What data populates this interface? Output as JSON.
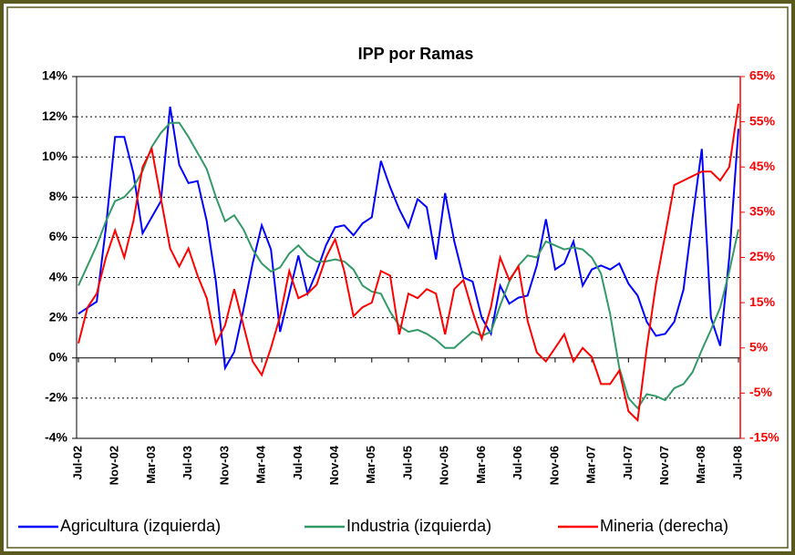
{
  "chart_data": {
    "type": "line",
    "title": "IPP por Ramas",
    "categories": [
      "Jul-02",
      null,
      null,
      null,
      "Nov-02",
      null,
      null,
      null,
      "Mar-03",
      null,
      null,
      null,
      "Jul-03",
      null,
      null,
      null,
      "Nov-03",
      null,
      null,
      null,
      "Mar-04",
      null,
      null,
      null,
      "Jul-04",
      null,
      null,
      null,
      "Nov-04",
      null,
      null,
      null,
      "Mar-05",
      null,
      null,
      null,
      "Jul-05",
      null,
      null,
      null,
      "Nov-05",
      null,
      null,
      null,
      "Mar-06",
      null,
      null,
      null,
      "Jul-06",
      null,
      null,
      null,
      "Nov-06",
      null,
      null,
      null,
      "Mar-07",
      null,
      null,
      null,
      "Jul-07",
      null,
      null,
      null,
      "Nov-07",
      null,
      null,
      null,
      "Mar-08",
      null,
      null,
      null,
      "Jul-08"
    ],
    "series": [
      {
        "name": "Agricultura (izquierda)",
        "color": "#0000ff",
        "axis": "y",
        "values": [
          2.2,
          2.5,
          2.8,
          6.5,
          11.0,
          11.0,
          9.2,
          6.2,
          7.0,
          7.8,
          12.5,
          9.6,
          8.7,
          8.8,
          6.8,
          3.8,
          -0.5,
          0.3,
          2.4,
          4.7,
          6.6,
          5.4,
          1.3,
          3.2,
          5.1,
          3.2,
          4.3,
          5.6,
          6.5,
          6.6,
          6.1,
          6.7,
          7.0,
          9.8,
          8.5,
          7.4,
          6.5,
          7.9,
          7.5,
          4.9,
          8.2,
          5.8,
          4.0,
          3.8,
          2.0,
          1.2,
          3.6,
          2.7,
          3.0,
          3.1,
          4.6,
          6.9,
          4.4,
          4.7,
          5.8,
          3.6,
          4.4,
          4.6,
          4.4,
          4.7,
          3.7,
          3.1,
          1.8,
          1.1,
          1.2,
          1.8,
          3.4,
          7.0,
          10.4,
          2.0,
          0.6,
          5.0,
          11.4
        ]
      },
      {
        "name": "Industria (izquierda)",
        "color": "#339966",
        "axis": "y",
        "values": [
          3.6,
          4.6,
          5.6,
          6.8,
          7.8,
          8.0,
          8.5,
          9.3,
          10.5,
          11.2,
          11.7,
          11.7,
          11.0,
          10.2,
          9.4,
          8.0,
          6.8,
          7.1,
          6.4,
          5.4,
          4.7,
          4.3,
          4.5,
          5.2,
          5.6,
          5.1,
          4.8,
          4.8,
          4.9,
          4.8,
          4.4,
          3.6,
          3.3,
          3.2,
          2.3,
          1.6,
          1.3,
          1.4,
          1.2,
          0.9,
          0.5,
          0.5,
          0.9,
          1.3,
          1.1,
          1.3,
          2.6,
          3.8,
          4.6,
          5.1,
          5.0,
          5.8,
          5.6,
          5.4,
          5.5,
          5.4,
          5.0,
          4.2,
          2.2,
          -0.5,
          -2.0,
          -2.5,
          -1.8,
          -1.9,
          -2.1,
          -1.5,
          -1.3,
          -0.7,
          0.4,
          1.4,
          2.5,
          4.3,
          6.4
        ]
      },
      {
        "name": "Mineria (derecha)",
        "color": "#ff0000",
        "axis": "y2",
        "values": [
          6,
          14,
          17,
          25,
          31,
          25,
          33,
          45,
          49,
          38,
          27,
          23,
          27,
          21,
          16,
          6,
          10,
          18,
          10,
          2,
          -1,
          5,
          12,
          22,
          16,
          17,
          19,
          25,
          29,
          22,
          12,
          14,
          15,
          22,
          21,
          8,
          17,
          16,
          18,
          17,
          8,
          18,
          20,
          13,
          7,
          14,
          25,
          20,
          23,
          11,
          4,
          2,
          5,
          8,
          2,
          5,
          3,
          -3,
          -3,
          0,
          -9,
          -11,
          5,
          19,
          30,
          41,
          42,
          43,
          44,
          44,
          42,
          45,
          59
        ]
      }
    ],
    "ylim": [
      -4,
      14
    ],
    "yticks": [
      {
        "value": -4,
        "label": "-4%"
      },
      {
        "value": -2,
        "label": "-2%"
      },
      {
        "value": 0,
        "label": "0%"
      },
      {
        "value": 2,
        "label": "2%"
      },
      {
        "value": 4,
        "label": "4%"
      },
      {
        "value": 6,
        "label": "6%"
      },
      {
        "value": 8,
        "label": "8%"
      },
      {
        "value": 10,
        "label": "10%"
      },
      {
        "value": 12,
        "label": "12%"
      },
      {
        "value": 14,
        "label": "14%"
      }
    ],
    "y2lim": [
      -15,
      65
    ],
    "y2ticks": [
      {
        "value": -15,
        "label": "-15%"
      },
      {
        "value": -5,
        "label": "-5%"
      },
      {
        "value": 5,
        "label": "5%"
      },
      {
        "value": 15,
        "label": "15%"
      },
      {
        "value": 25,
        "label": "25%"
      },
      {
        "value": 35,
        "label": "35%"
      },
      {
        "value": 45,
        "label": "45%"
      },
      {
        "value": 55,
        "label": "55%"
      },
      {
        "value": 65,
        "label": "65%"
      }
    ],
    "grid": true,
    "legend": "bottom"
  }
}
